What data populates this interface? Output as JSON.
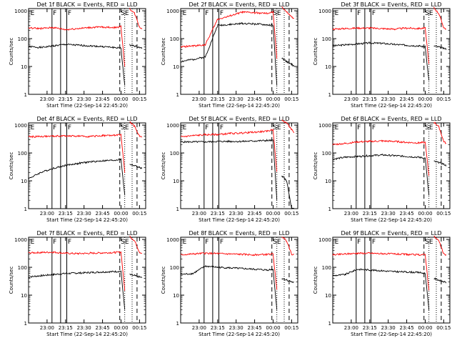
{
  "figure": {
    "background": "#ffffff",
    "axis_color": "#000000",
    "events_color": "#000000",
    "lld_color": "#ff0000"
  },
  "shared": {
    "ylabel": "Counts/sec",
    "xlabel": "Start Time (22-Sep-14 22:45:20)",
    "xtick_labels": [
      "23:00",
      "23:15",
      "23:30",
      "23:45",
      "00:00",
      "00:15"
    ],
    "ytick_labels": [
      "1",
      "10",
      "100",
      "1000"
    ]
  },
  "chart_data": [
    {
      "type": "line",
      "title": "Det 1f BLACK = Events, RED = LLD",
      "xlabel": "Start Time (22-Sep-14 22:45:20)",
      "ylabel": "Counts/sec",
      "x_minutes_after_start": [
        0,
        10,
        20,
        30,
        40,
        50,
        60,
        70,
        75,
        78,
        80,
        82,
        86,
        90,
        92
      ],
      "series": [
        {
          "name": "Events",
          "values": [
            52,
            48,
            55,
            62,
            58,
            55,
            52,
            48,
            45,
            2,
            null,
            60,
            55,
            48,
            45
          ]
        },
        {
          "name": "LLD",
          "values": [
            240,
            230,
            250,
            210,
            230,
            250,
            260,
            250,
            270,
            10,
            null,
            1200,
            800,
            260,
            230
          ]
        }
      ],
      "region_labels": [
        "E",
        "F",
        "F",
        "SE"
      ],
      "ylim": [
        1,
        1200
      ],
      "yscale": "log",
      "grid": false
    },
    {
      "type": "line",
      "title": "Det 2f BLACK = Events, RED = LLD",
      "xlabel": "Start Time (22-Sep-14 22:45:20)",
      "ylabel": "Counts/sec",
      "x_minutes_after_start": [
        0,
        10,
        20,
        30,
        40,
        50,
        60,
        70,
        75,
        78,
        80,
        82,
        86,
        90,
        92
      ],
      "series": [
        {
          "name": "Events",
          "values": [
            15,
            18,
            22,
            300,
            320,
            350,
            340,
            310,
            300,
            2,
            null,
            20,
            15,
            12,
            10
          ]
        },
        {
          "name": "LLD",
          "values": [
            50,
            55,
            60,
            500,
            650,
            900,
            850,
            800,
            900,
            20,
            null,
            1400,
            900,
            600,
            500
          ]
        }
      ],
      "region_labels": [
        "E",
        "F",
        "F",
        "SE"
      ],
      "ylim": [
        1,
        1200
      ],
      "yscale": "log",
      "grid": false
    },
    {
      "type": "line",
      "title": "Det 3f BLACK = Events, RED = LLD",
      "xlabel": "Start Time (22-Sep-14 22:45:20)",
      "ylabel": "Counts/sec",
      "x_minutes_after_start": [
        0,
        10,
        20,
        30,
        40,
        50,
        60,
        70,
        75,
        78,
        80,
        82,
        86,
        90,
        92
      ],
      "series": [
        {
          "name": "Events",
          "values": [
            55,
            60,
            65,
            70,
            68,
            62,
            58,
            55,
            50,
            3,
            null,
            55,
            50,
            45,
            42
          ]
        },
        {
          "name": "LLD",
          "values": [
            220,
            230,
            240,
            240,
            230,
            220,
            240,
            230,
            240,
            12,
            null,
            1300,
            800,
            250,
            220
          ]
        }
      ],
      "region_labels": [
        "E",
        "F",
        "F",
        "SE"
      ],
      "ylim": [
        1,
        1200
      ],
      "yscale": "log",
      "grid": false
    },
    {
      "type": "line",
      "title": "Det 4f BLACK = Events, RED = LLD",
      "xlabel": "Start Time (22-Sep-14 22:45:20)",
      "ylabel": "Counts/sec",
      "x_minutes_after_start": [
        0,
        10,
        20,
        30,
        40,
        50,
        60,
        70,
        75,
        78,
        80,
        82,
        86,
        90,
        92
      ],
      "series": [
        {
          "name": "Events",
          "values": [
            12,
            20,
            28,
            36,
            42,
            48,
            52,
            55,
            60,
            3,
            null,
            40,
            35,
            30,
            28
          ]
        },
        {
          "name": "LLD",
          "values": [
            380,
            390,
            400,
            410,
            400,
            390,
            420,
            430,
            450,
            20,
            null,
            1300,
            900,
            400,
            380
          ]
        }
      ],
      "region_labels": [
        "E",
        "F",
        "F",
        "SE"
      ],
      "ylim": [
        1,
        1200
      ],
      "yscale": "log",
      "grid": false
    },
    {
      "type": "line",
      "title": "Det 5f BLACK = Events, RED = LLD",
      "xlabel": "Start Time (22-Sep-14 22:45:20)",
      "ylabel": "Counts/sec",
      "x_minutes_after_start": [
        0,
        10,
        20,
        30,
        40,
        50,
        60,
        70,
        75,
        78,
        80,
        82,
        86,
        90,
        92
      ],
      "series": [
        {
          "name": "Events",
          "values": [
            250,
            250,
            250,
            260,
            260,
            260,
            270,
            280,
            280,
            2,
            null,
            15,
            10,
            1,
            1
          ]
        },
        {
          "name": "LLD",
          "values": [
            380,
            420,
            450,
            460,
            500,
            520,
            560,
            600,
            700,
            20,
            null,
            1500,
            1200,
            700,
            500
          ]
        }
      ],
      "region_labels": [
        "E",
        "F",
        "F",
        "SE"
      ],
      "ylim": [
        1,
        1200
      ],
      "yscale": "log",
      "grid": false
    },
    {
      "type": "line",
      "title": "Det 6f BLACK = Events, RED = LLD",
      "xlabel": "Start Time (22-Sep-14 22:45:20)",
      "ylabel": "Counts/sec",
      "x_minutes_after_start": [
        0,
        10,
        20,
        30,
        40,
        50,
        60,
        70,
        75,
        78,
        80,
        82,
        86,
        90,
        92
      ],
      "series": [
        {
          "name": "Events",
          "values": [
            60,
            70,
            75,
            80,
            85,
            80,
            75,
            70,
            65,
            3,
            null,
            50,
            45,
            40,
            35
          ]
        },
        {
          "name": "LLD",
          "values": [
            200,
            220,
            250,
            260,
            270,
            260,
            240,
            230,
            240,
            15,
            null,
            1300,
            900,
            260,
            220
          ]
        }
      ],
      "region_labels": [
        "E",
        "F",
        "F",
        "SE"
      ],
      "ylim": [
        1,
        1200
      ],
      "yscale": "log",
      "grid": false
    },
    {
      "type": "line",
      "title": "Det 7f BLACK = Events, RED = LLD",
      "xlabel": "Start Time (22-Sep-14 22:45:20)",
      "ylabel": "Counts/sec",
      "x_minutes_after_start": [
        0,
        10,
        20,
        30,
        40,
        50,
        60,
        70,
        75,
        78,
        80,
        82,
        86,
        90,
        92
      ],
      "series": [
        {
          "name": "Events",
          "values": [
            45,
            50,
            55,
            60,
            62,
            65,
            68,
            70,
            72,
            3,
            null,
            55,
            50,
            45,
            42
          ]
        },
        {
          "name": "LLD",
          "values": [
            330,
            340,
            350,
            320,
            310,
            320,
            330,
            340,
            350,
            15,
            null,
            1300,
            900,
            350,
            320
          ]
        }
      ],
      "region_labels": [
        "E",
        "F",
        "F",
        "SE"
      ],
      "ylim": [
        1,
        1200
      ],
      "yscale": "log",
      "grid": false
    },
    {
      "type": "line",
      "title": "Det 8f BLACK = Events, RED = LLD",
      "xlabel": "Start Time (22-Sep-14 22:45:20)",
      "ylabel": "Counts/sec",
      "x_minutes_after_start": [
        0,
        10,
        20,
        30,
        40,
        50,
        60,
        70,
        75,
        78,
        80,
        82,
        86,
        90,
        92
      ],
      "series": [
        {
          "name": "Events",
          "values": [
            55,
            60,
            110,
            100,
            95,
            90,
            85,
            80,
            85,
            3,
            null,
            40,
            35,
            30,
            28
          ]
        },
        {
          "name": "LLD",
          "values": [
            280,
            300,
            320,
            310,
            300,
            290,
            280,
            290,
            300,
            15,
            null,
            1300,
            900,
            300,
            280
          ]
        }
      ],
      "region_labels": [
        "E",
        "F",
        "F",
        "SE"
      ],
      "ylim": [
        1,
        1200
      ],
      "yscale": "log",
      "grid": false
    },
    {
      "type": "line",
      "title": "Det 9f BLACK = Events, RED = LLD",
      "xlabel": "Start Time (22-Sep-14 22:45:20)",
      "ylabel": "Counts/sec",
      "x_minutes_after_start": [
        0,
        10,
        20,
        30,
        40,
        50,
        60,
        70,
        75,
        78,
        80,
        82,
        86,
        90,
        92
      ],
      "series": [
        {
          "name": "Events",
          "values": [
            50,
            55,
            85,
            80,
            75,
            70,
            68,
            65,
            60,
            3,
            null,
            40,
            35,
            30,
            28
          ]
        },
        {
          "name": "LLD",
          "values": [
            280,
            300,
            320,
            320,
            310,
            300,
            290,
            280,
            290,
            15,
            null,
            1300,
            900,
            300,
            280
          ]
        }
      ],
      "region_labels": [
        "E",
        "F",
        "F",
        "SE"
      ],
      "ylim": [
        1,
        1200
      ],
      "yscale": "log",
      "grid": false
    }
  ]
}
